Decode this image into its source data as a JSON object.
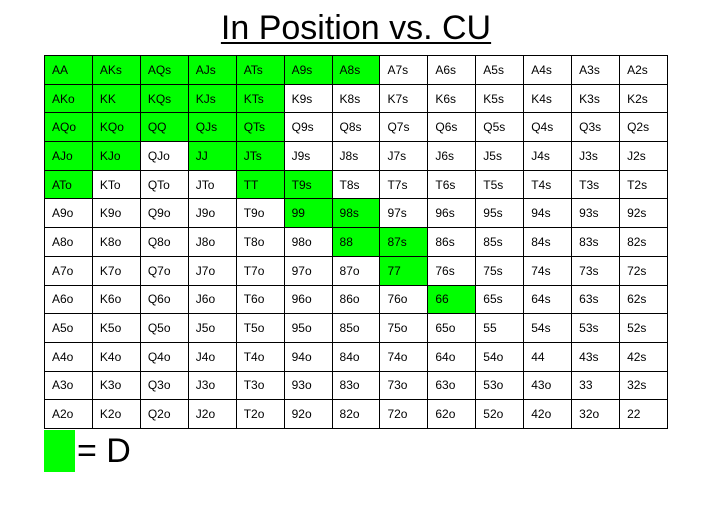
{
  "title": "In Position vs. CU",
  "colors": {
    "D": "#00ff00",
    "empty": "#ffffff"
  },
  "legend": {
    "text": "= D"
  },
  "grid": {
    "rows": [
      [
        "AA",
        "AKs",
        "AQs",
        "AJs",
        "ATs",
        "A9s",
        "A8s",
        "A7s",
        "A6s",
        "A5s",
        "A4s",
        "A3s",
        "A2s"
      ],
      [
        "AKo",
        "KK",
        "KQs",
        "KJs",
        "KTs",
        "K9s",
        "K8s",
        "K7s",
        "K6s",
        "K5s",
        "K4s",
        "K3s",
        "K2s"
      ],
      [
        "AQo",
        "KQo",
        "QQ",
        "QJs",
        "QTs",
        "Q9s",
        "Q8s",
        "Q7s",
        "Q6s",
        "Q5s",
        "Q4s",
        "Q3s",
        "Q2s"
      ],
      [
        "AJo",
        "KJo",
        "QJo",
        "JJ",
        "JTs",
        "J9s",
        "J8s",
        "J7s",
        "J6s",
        "J5s",
        "J4s",
        "J3s",
        "J2s"
      ],
      [
        "ATo",
        "KTo",
        "QTo",
        "JTo",
        "TT",
        "T9s",
        "T8s",
        "T7s",
        "T6s",
        "T5s",
        "T4s",
        "T3s",
        "T2s"
      ],
      [
        "A9o",
        "K9o",
        "Q9o",
        "J9o",
        "T9o",
        "99",
        "98s",
        "97s",
        "96s",
        "95s",
        "94s",
        "93s",
        "92s"
      ],
      [
        "A8o",
        "K8o",
        "Q8o",
        "J8o",
        "T8o",
        "98o",
        "88",
        "87s",
        "86s",
        "85s",
        "84s",
        "83s",
        "82s"
      ],
      [
        "A7o",
        "K7o",
        "Q7o",
        "J7o",
        "T7o",
        "97o",
        "87o",
        "77",
        "76s",
        "75s",
        "74s",
        "73s",
        "72s"
      ],
      [
        "A6o",
        "K6o",
        "Q6o",
        "J6o",
        "T6o",
        "96o",
        "86o",
        "76o",
        "66",
        "65s",
        "64s",
        "63s",
        "62s"
      ],
      [
        "A5o",
        "K5o",
        "Q5o",
        "J5o",
        "T5o",
        "95o",
        "85o",
        "75o",
        "65o",
        "55",
        "54s",
        "53s",
        "52s"
      ],
      [
        "A4o",
        "K4o",
        "Q4o",
        "J4o",
        "T4o",
        "94o",
        "84o",
        "74o",
        "64o",
        "54o",
        "44",
        "43s",
        "42s"
      ],
      [
        "A3o",
        "K3o",
        "Q3o",
        "J3o",
        "T3o",
        "93o",
        "83o",
        "73o",
        "63o",
        "53o",
        "43o",
        "33",
        "32s"
      ],
      [
        "A2o",
        "K2o",
        "Q2o",
        "J2o",
        "T2o",
        "92o",
        "82o",
        "72o",
        "62o",
        "52o",
        "42o",
        "32o",
        "22"
      ]
    ],
    "highlighted": [
      "AA",
      "AKs",
      "AQs",
      "AJs",
      "ATs",
      "A9s",
      "A8s",
      "AKo",
      "KK",
      "KQs",
      "KJs",
      "KTs",
      "AQo",
      "KQo",
      "QQ",
      "QJs",
      "QTs",
      "AJo",
      "KJo",
      "JJ",
      "JTs",
      "ATo",
      "TT",
      "T9s",
      "99",
      "98s",
      "88",
      "87s",
      "77",
      "66"
    ]
  }
}
